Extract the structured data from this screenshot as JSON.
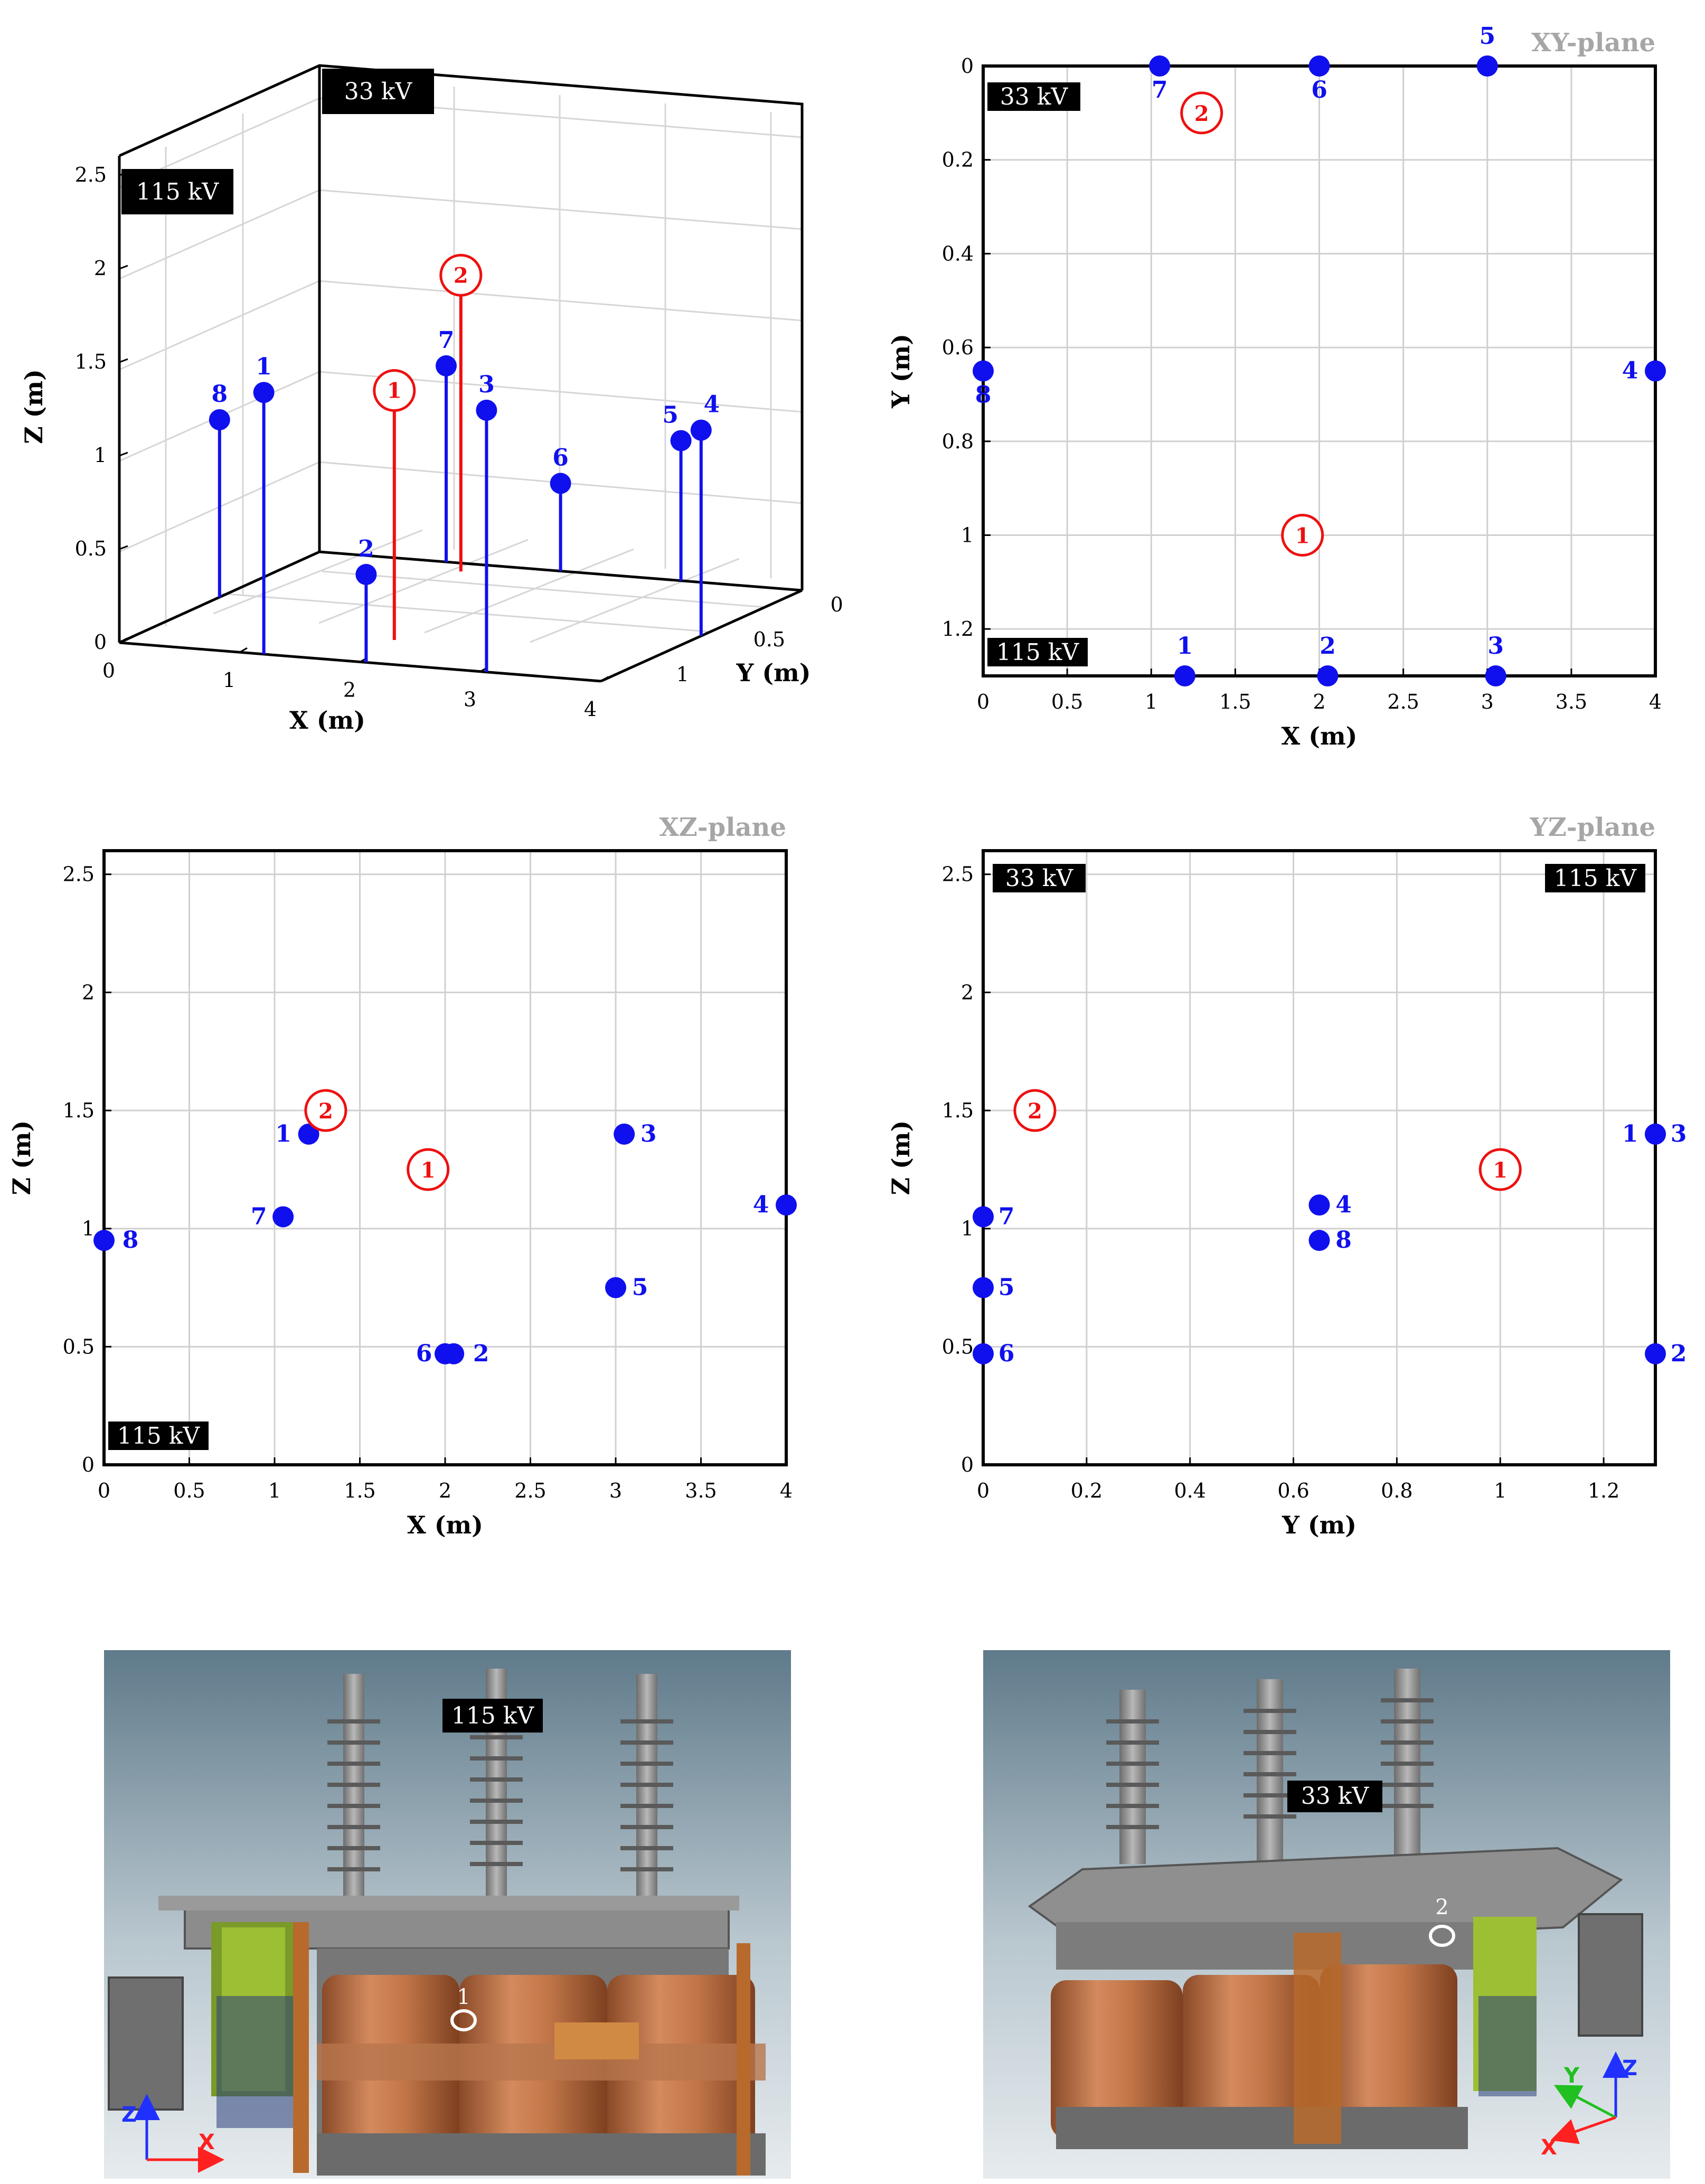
{
  "colors": {
    "sensor": "#1010ee",
    "source": "#ee1010",
    "grid": "#d0d0d0",
    "plane_title": "#a6a6a6"
  },
  "voltages": {
    "hv": "115 kV",
    "lv": "33 kV"
  },
  "chart_data": [
    {
      "type": "scatter",
      "view": "3d",
      "xlabel": "X (m)",
      "ylabel": "Y (m)",
      "zlabel": "Z (m)",
      "xticks": [
        "0",
        "1",
        "2",
        "3",
        "4"
      ],
      "yticks": [
        "0",
        "0.5",
        "1"
      ],
      "zticks": [
        "0",
        "0.5",
        "1",
        "1.5",
        "2",
        "2.5"
      ],
      "xlim": [
        0,
        4
      ],
      "ylim": [
        0,
        1.3
      ],
      "zlim": [
        0,
        2.6
      ],
      "grid": true
    },
    {
      "type": "scatter",
      "view": "xy",
      "title": "XY-plane",
      "xlabel": "X (m)",
      "ylabel": "Y (m)",
      "xticks": [
        "0",
        "0.5",
        "1",
        "1.5",
        "2",
        "2.5",
        "3",
        "3.5",
        "4"
      ],
      "yticks": [
        "0",
        "0.2",
        "0.4",
        "0.6",
        "0.8",
        "1",
        "1.2"
      ],
      "xlim": [
        0,
        4
      ],
      "ylim": [
        0,
        1.3
      ],
      "y_reversed": true,
      "grid": true
    },
    {
      "type": "scatter",
      "view": "xz",
      "title": "XZ-plane",
      "xlabel": "X (m)",
      "ylabel": "Z (m)",
      "xticks": [
        "0",
        "0.5",
        "1",
        "1.5",
        "2",
        "2.5",
        "3",
        "3.5",
        "4"
      ],
      "yticks": [
        "0",
        "0.5",
        "1",
        "1.5",
        "2",
        "2.5"
      ],
      "xlim": [
        0,
        4
      ],
      "ylim": [
        0,
        2.6
      ],
      "grid": true
    },
    {
      "type": "scatter",
      "view": "yz",
      "title": "YZ-plane",
      "xlabel": "Y (m)",
      "ylabel": "Z (m)",
      "xticks": [
        "0",
        "0.2",
        "0.4",
        "0.6",
        "0.8",
        "1",
        "1.2"
      ],
      "yticks": [
        "0",
        "0.5",
        "1",
        "1.5",
        "2",
        "2.5"
      ],
      "xlim": [
        0,
        1.3
      ],
      "ylim": [
        0,
        2.6
      ],
      "grid": true
    }
  ],
  "sensors": [
    {
      "label": "1",
      "x": 1.2,
      "y": 1.3,
      "z": 1.4
    },
    {
      "label": "2",
      "x": 2.05,
      "y": 1.3,
      "z": 0.47
    },
    {
      "label": "3",
      "x": 3.05,
      "y": 1.3,
      "z": 1.4
    },
    {
      "label": "4",
      "x": 4.0,
      "y": 0.65,
      "z": 1.1
    },
    {
      "label": "5",
      "x": 3.0,
      "y": 0.0,
      "z": 0.75
    },
    {
      "label": "6",
      "x": 2.0,
      "y": 0.0,
      "z": 0.47
    },
    {
      "label": "7",
      "x": 1.05,
      "y": 0.0,
      "z": 1.05
    },
    {
      "label": "8",
      "x": 0.0,
      "y": 0.65,
      "z": 0.95
    }
  ],
  "sources": [
    {
      "label": "1",
      "x": 1.9,
      "y": 1.0,
      "z": 1.25
    },
    {
      "label": "2",
      "x": 1.3,
      "y": 0.1,
      "z": 1.5
    }
  ],
  "photos": [
    {
      "kv": "115 kV",
      "marker": "1",
      "axes": [
        "Z",
        "X"
      ]
    },
    {
      "kv": "33 kV",
      "marker": "2",
      "axes": [
        "Z",
        "Y",
        "X"
      ]
    }
  ]
}
